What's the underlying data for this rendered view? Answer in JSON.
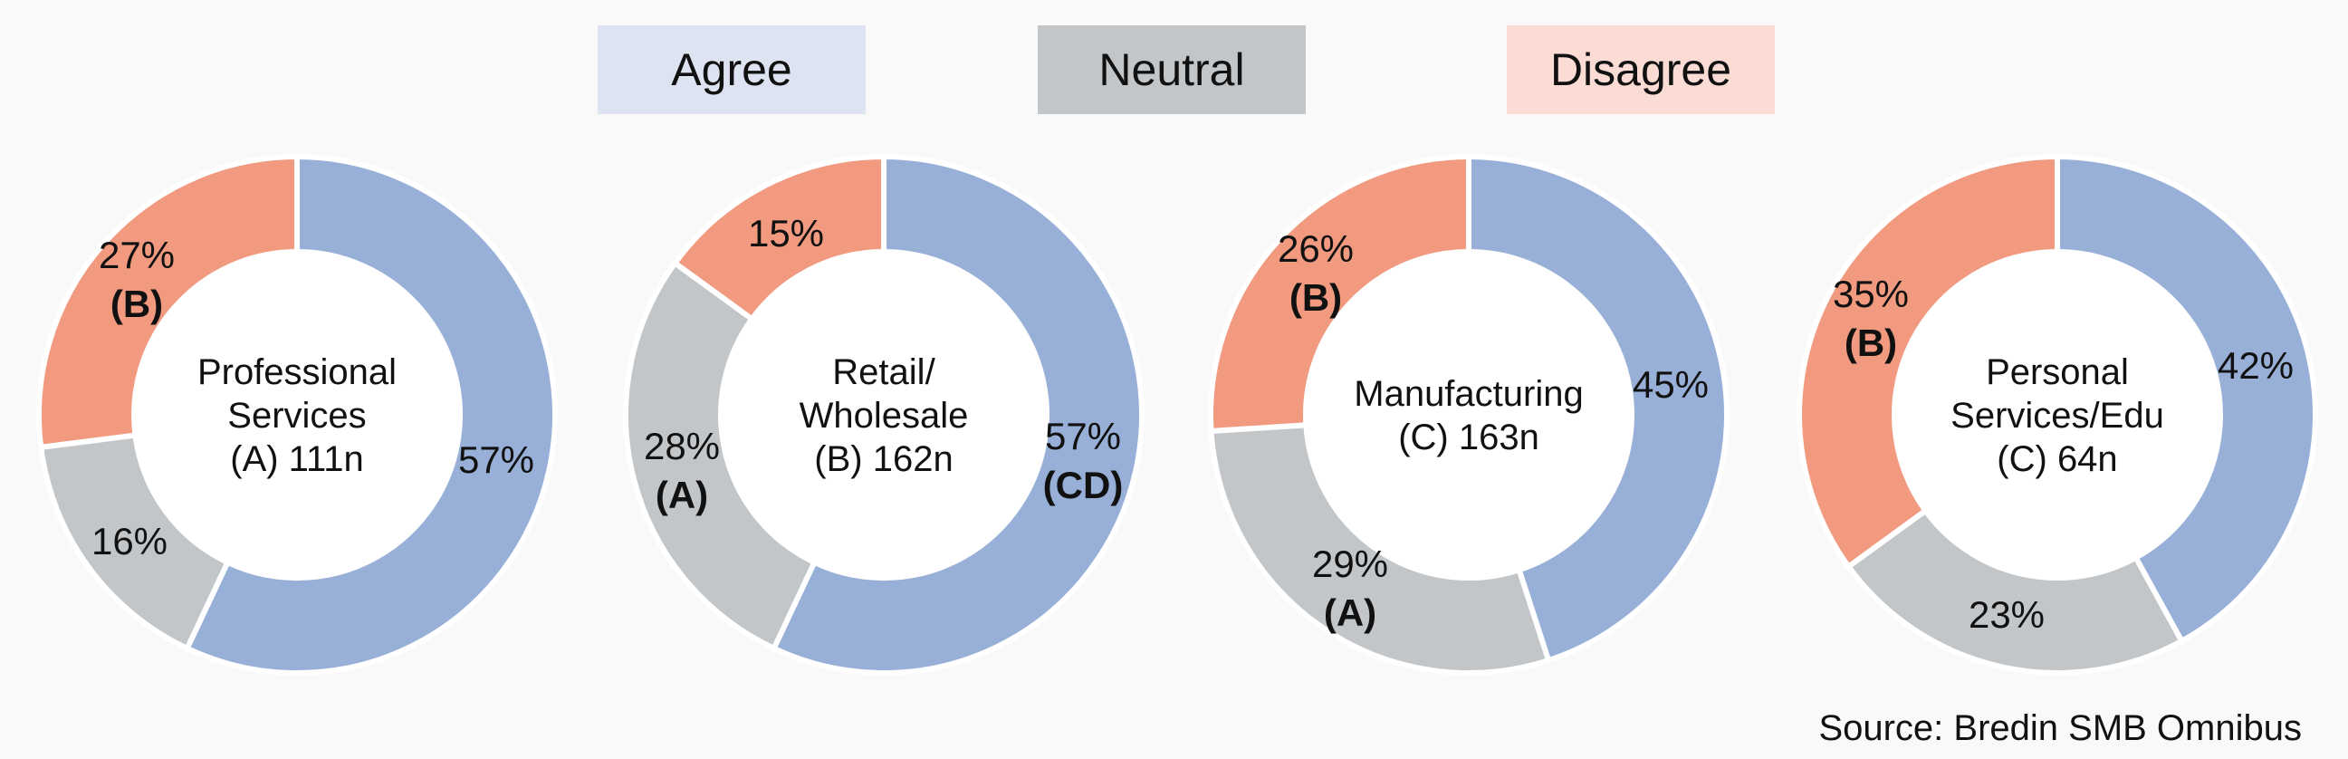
{
  "legend": [
    {
      "label": "Agree",
      "color": "#dde3f1"
    },
    {
      "label": "Neutral",
      "color": "#c3c6c9"
    },
    {
      "label": "Disagree",
      "color": "#fbdcd4"
    }
  ],
  "source": "Source: Bredin SMB Omnibus",
  "chart_data": [
    {
      "type": "pie",
      "center_label": [
        "Professional",
        "Services",
        "(A) 111n"
      ],
      "categories": [
        "Agree",
        "Neutral",
        "Disagree"
      ],
      "values": [
        57,
        16,
        27
      ],
      "colors": [
        "#98b0d8",
        "#c3c6c9",
        "#f19a80"
      ],
      "labels": [
        "57%",
        "16%",
        "27%"
      ],
      "sig": [
        "",
        "",
        "(B)"
      ]
    },
    {
      "type": "pie",
      "center_label": [
        "Retail/",
        "Wholesale",
        "(B) 162n"
      ],
      "categories": [
        "Agree",
        "Neutral",
        "Disagree"
      ],
      "values": [
        57,
        28,
        15
      ],
      "colors": [
        "#98b0d8",
        "#c3c6c9",
        "#f19a80"
      ],
      "labels": [
        "57%",
        "28%",
        "15%"
      ],
      "sig": [
        "(CD)",
        "(A)",
        ""
      ]
    },
    {
      "type": "pie",
      "center_label": [
        "Manufacturing",
        "(C) 163n"
      ],
      "categories": [
        "Agree",
        "Neutral",
        "Disagree"
      ],
      "values": [
        45,
        29,
        26
      ],
      "colors": [
        "#98b0d8",
        "#c3c6c9",
        "#f19a80"
      ],
      "labels": [
        "45%",
        "29%",
        "26%"
      ],
      "sig": [
        "",
        "(A)",
        "(B)"
      ]
    },
    {
      "type": "pie",
      "center_label": [
        "Personal",
        "Services/Edu",
        "(C) 64n"
      ],
      "categories": [
        "Agree",
        "Neutral",
        "Disagree"
      ],
      "values": [
        42,
        23,
        35
      ],
      "colors": [
        "#98b0d8",
        "#c3c6c9",
        "#f19a80"
      ],
      "labels": [
        "42%",
        "23%",
        "35%"
      ],
      "sig": [
        "",
        "",
        "(B)"
      ]
    }
  ]
}
